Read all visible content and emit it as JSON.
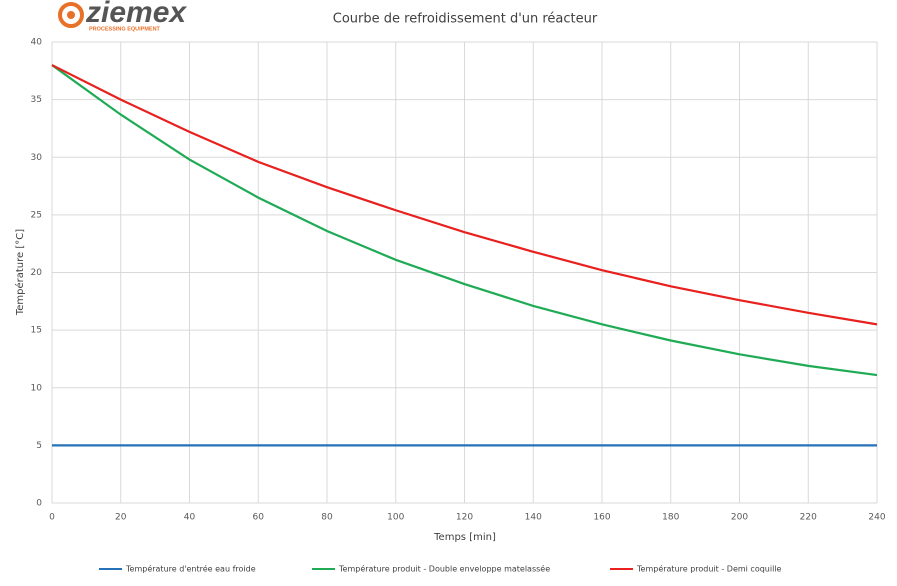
{
  "logo": {
    "name": "ziemex",
    "tagline": "PROCESSING EQUIPMENT"
  },
  "chart_data": {
    "type": "line",
    "title": "Courbe de refroidissement d'un réacteur",
    "x_label": "Temps [min]",
    "y_label": "Température [°C]",
    "x": [
      0,
      20,
      40,
      60,
      80,
      100,
      120,
      140,
      160,
      180,
      200,
      220,
      240
    ],
    "series": [
      {
        "name": "Température d'entrée eau froide",
        "color": "#2672b8",
        "values": [
          5,
          5,
          5,
          5,
          5,
          5,
          5,
          5,
          5,
          5,
          5,
          5,
          5
        ]
      },
      {
        "name": "Température produit - Double enveloppe matelassée",
        "color": "#1fab55",
        "values": [
          38,
          33.7,
          29.8,
          26.5,
          23.6,
          21.1,
          19.0,
          17.1,
          15.5,
          14.1,
          12.9,
          11.9,
          11.1
        ]
      },
      {
        "name": "Température produit - Demi coquille",
        "color": "#e8201e",
        "values": [
          38,
          35,
          32.2,
          29.6,
          27.4,
          25.4,
          23.5,
          21.8,
          20.2,
          18.8,
          17.6,
          16.5,
          15.5
        ]
      }
    ],
    "xlim": [
      0,
      240
    ],
    "xticks": [
      0,
      20,
      40,
      60,
      80,
      100,
      120,
      140,
      160,
      180,
      200,
      220,
      240
    ],
    "ylim": [
      0,
      40
    ],
    "yticks": [
      0,
      5,
      10,
      15,
      20,
      25,
      30,
      35,
      40
    ],
    "grid": true,
    "legend": "bottom"
  }
}
